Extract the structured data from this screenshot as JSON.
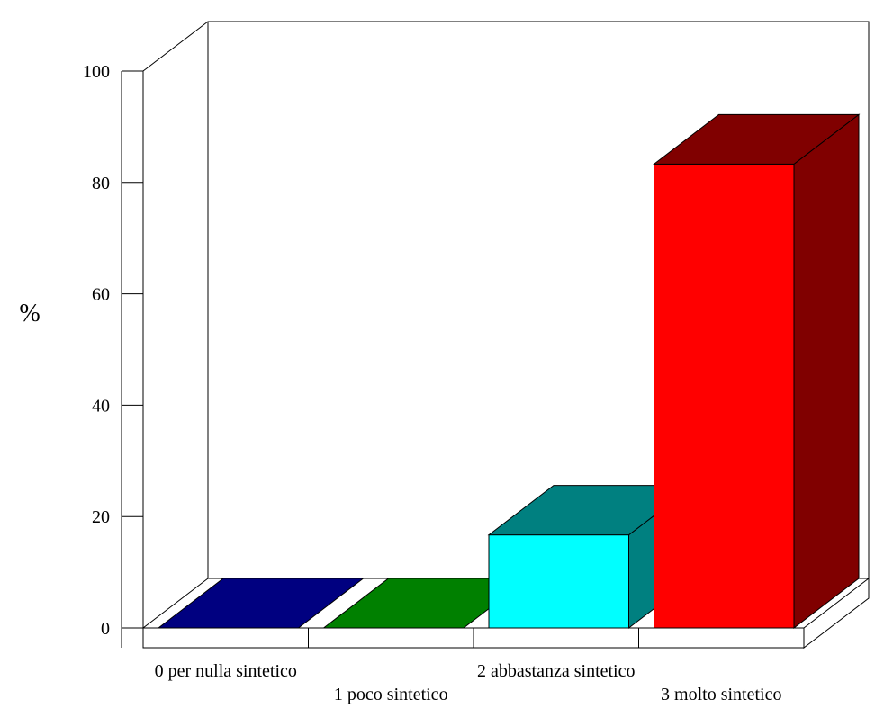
{
  "chart_data": {
    "type": "bar",
    "style": "3d",
    "categories": [
      "0 per nulla sintetico",
      "1 poco sintetico",
      "2 abbastanza sintetico",
      "3 molto sintetico"
    ],
    "values": [
      0,
      0,
      16.7,
      83.3
    ],
    "colors": {
      "front": [
        "#000080",
        "#008000",
        "#00ffff",
        "#ff0000"
      ],
      "side": [
        "#000060",
        "#006000",
        "#008080",
        "#800000"
      ]
    },
    "ylabel": "%",
    "xlabel": "",
    "title": "",
    "ylim": [
      0,
      100
    ],
    "yticks": [
      "0",
      "20",
      "40",
      "60",
      "80",
      "100"
    ],
    "grid": false,
    "legend": "none"
  }
}
